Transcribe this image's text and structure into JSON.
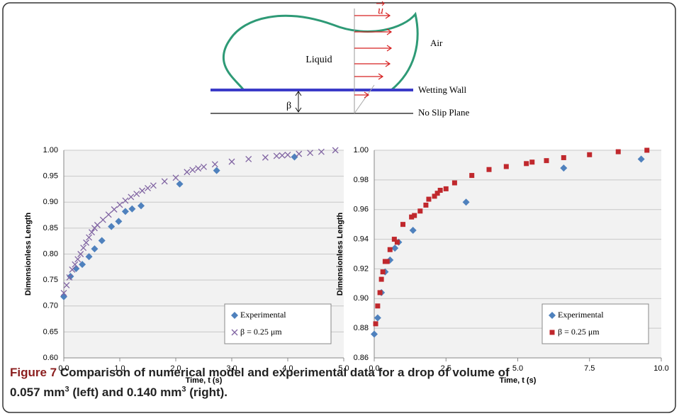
{
  "diagram": {
    "labels": {
      "liquid": "Liquid",
      "air": "Air",
      "wetting_wall": "Wetting Wall",
      "beta": "β",
      "no_slip": "No Slip Plane",
      "velocity": "u"
    }
  },
  "chart_data": [
    {
      "type": "scatter",
      "xlabel": "Time, t (s)",
      "ylabel": "Dimensionless Length",
      "xlim": [
        0,
        5
      ],
      "xticks": [
        {
          "value": 0,
          "label": "0.0"
        },
        {
          "value": 1,
          "label": "1.0"
        },
        {
          "value": 2,
          "label": "2.0"
        },
        {
          "value": 3,
          "label": "3.0"
        },
        {
          "value": 4,
          "label": "4.0"
        },
        {
          "value": 5,
          "label": "5.0"
        }
      ],
      "ylim": [
        0.6,
        1.0
      ],
      "yticks": [
        {
          "value": 0.6,
          "label": "0.60"
        },
        {
          "value": 0.65,
          "label": "0.65"
        },
        {
          "value": 0.7,
          "label": "0.70"
        },
        {
          "value": 0.75,
          "label": "0.75"
        },
        {
          "value": 0.8,
          "label": "0.80"
        },
        {
          "value": 0.85,
          "label": "0.85"
        },
        {
          "value": 0.9,
          "label": "0.90"
        },
        {
          "value": 0.95,
          "label": "0.95"
        },
        {
          "value": 1.0,
          "label": "1.00"
        }
      ],
      "grid": true,
      "legend": "lower right",
      "series": [
        {
          "name": "Experimental",
          "color": "#4f81bd",
          "marker": "diamond",
          "x": [
            0.0,
            0.12,
            0.22,
            0.33,
            0.45,
            0.55,
            0.68,
            0.85,
            0.98,
            1.1,
            1.22,
            1.38,
            2.07,
            2.73,
            4.12
          ],
          "values": [
            0.718,
            0.757,
            0.772,
            0.78,
            0.795,
            0.81,
            0.826,
            0.853,
            0.863,
            0.882,
            0.887,
            0.893,
            0.935,
            0.961,
            0.987
          ]
        },
        {
          "name": "β = 0.25 μm",
          "color": "#8064a2",
          "marker": "x",
          "x": [
            0.0,
            0.05,
            0.1,
            0.15,
            0.2,
            0.25,
            0.3,
            0.35,
            0.4,
            0.45,
            0.5,
            0.55,
            0.6,
            0.7,
            0.8,
            0.9,
            1.0,
            1.1,
            1.2,
            1.3,
            1.4,
            1.5,
            1.6,
            1.8,
            2.0,
            2.2,
            2.3,
            2.4,
            2.5,
            2.7,
            3.0,
            3.3,
            3.6,
            3.8,
            3.9,
            4.0,
            4.2,
            4.4,
            4.6,
            4.85
          ],
          "values": [
            0.725,
            0.74,
            0.755,
            0.77,
            0.78,
            0.79,
            0.8,
            0.812,
            0.822,
            0.832,
            0.842,
            0.85,
            0.856,
            0.866,
            0.876,
            0.886,
            0.895,
            0.903,
            0.91,
            0.916,
            0.922,
            0.927,
            0.932,
            0.94,
            0.947,
            0.958,
            0.962,
            0.965,
            0.968,
            0.973,
            0.978,
            0.983,
            0.986,
            0.989,
            0.99,
            0.991,
            0.993,
            0.995,
            0.997,
            1.0
          ]
        }
      ]
    },
    {
      "type": "scatter",
      "xlabel": "Time, t (s)",
      "ylabel": "Dimensionless Length",
      "xlim": [
        0,
        10
      ],
      "xticks": [
        {
          "value": 0,
          "label": "0.0"
        },
        2.5,
        {
          "value": 5,
          "label": "5.0"
        },
        7.5,
        {
          "value": 10,
          "label": "10.0"
        }
      ],
      "ylim": [
        0.86,
        1.0
      ],
      "yticks": [
        0.86,
        0.88,
        {
          "value": 0.9,
          "label": "0.90"
        },
        0.92,
        0.94,
        0.96,
        0.98,
        {
          "value": 1.0,
          "label": "1.00"
        }
      ],
      "grid": true,
      "legend": "lower right",
      "series": [
        {
          "name": "Experimental",
          "color": "#4f81bd",
          "marker": "diamond",
          "x": [
            0.0,
            0.12,
            0.25,
            0.38,
            0.55,
            0.72,
            0.85,
            1.35,
            3.2,
            6.6,
            9.3
          ],
          "values": [
            0.876,
            0.887,
            0.904,
            0.918,
            0.926,
            0.934,
            0.938,
            0.946,
            0.965,
            0.988,
            0.994
          ]
        },
        {
          "name": "β = 0.25 μm",
          "color": "#c0282d",
          "marker": "square",
          "x": [
            0.05,
            0.12,
            0.2,
            0.25,
            0.3,
            0.38,
            0.45,
            0.55,
            0.7,
            0.8,
            1.0,
            1.3,
            1.4,
            1.6,
            1.8,
            1.9,
            2.1,
            2.2,
            2.3,
            2.5,
            2.8,
            3.4,
            4.0,
            4.6,
            5.3,
            5.5,
            6.0,
            6.6,
            7.5,
            8.5,
            9.5
          ],
          "values": [
            0.883,
            0.895,
            0.904,
            0.913,
            0.918,
            0.925,
            0.925,
            0.933,
            0.94,
            0.938,
            0.95,
            0.955,
            0.956,
            0.959,
            0.963,
            0.967,
            0.969,
            0.971,
            0.973,
            0.974,
            0.978,
            0.983,
            0.987,
            0.989,
            0.991,
            0.992,
            0.993,
            0.995,
            0.997,
            0.999,
            1.0
          ]
        }
      ]
    }
  ],
  "caption": {
    "label": "Figure 7",
    "line1": "Comparison of numerical model and experimental data for a drop of volume of",
    "part1": "0.057 mm",
    "sup1": "3",
    "part2": " (left) and 0.140 mm",
    "sup2": "3",
    "part3": " (right)."
  }
}
